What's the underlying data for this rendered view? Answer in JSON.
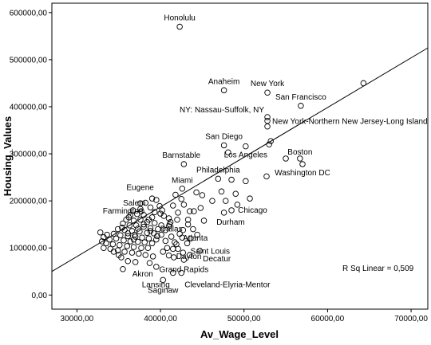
{
  "chart_data": {
    "type": "scatter",
    "xlabel": "Av_Wage_Level",
    "ylabel": "Housing_Values",
    "xlim": [
      27000,
      72000
    ],
    "ylim": [
      -30000,
      620000
    ],
    "xticks": [
      30000,
      40000,
      50000,
      60000,
      70000
    ],
    "xtick_labels": [
      "30000,00",
      "40000,00",
      "50000,00",
      "60000,00",
      "70000,00"
    ],
    "yticks": [
      0,
      100000,
      200000,
      300000,
      400000,
      500000,
      600000
    ],
    "ytick_labels": [
      "0,00",
      "100000,00",
      "200000,00",
      "300000,00",
      "400000,00",
      "500000,00",
      "600000,00"
    ],
    "fit_line": {
      "x": [
        27000,
        72000
      ],
      "y": [
        50000,
        525000
      ]
    },
    "rsq_label": "R Sq Linear = 0,509",
    "labeled_points": [
      {
        "name": "Honolulu",
        "x": 42300,
        "y": 570000,
        "label_pos": "above"
      },
      {
        "name": "Anaheim",
        "x": 47600,
        "y": 435000,
        "label_pos": "above"
      },
      {
        "name": "New York",
        "x": 52800,
        "y": 430000,
        "label_pos": "above"
      },
      {
        "name": "San Francisco",
        "x": 56800,
        "y": 402000,
        "label_pos": "above"
      },
      {
        "name": "NY: Nassau-Suffolk, NY",
        "x": 52800,
        "y": 378000,
        "label_pos": "above-left"
      },
      {
        "name": "New York-Northern New Jersey-Long Island",
        "x": 52800,
        "y": 370000,
        "label_pos": "right"
      },
      {
        "name": "San Diego",
        "x": 47600,
        "y": 318000,
        "label_pos": "above"
      },
      {
        "name": "Boston",
        "x": 56700,
        "y": 285000,
        "label_pos": "above"
      },
      {
        "name": "Los Angeles",
        "x": 50200,
        "y": 316000,
        "label_pos": "below"
      },
      {
        "name": "Barnstable",
        "x": 42500,
        "y": 278000,
        "label_pos": "above"
      },
      {
        "name": "Washington DC",
        "x": 57000,
        "y": 278000,
        "label_pos": "below"
      },
      {
        "name": "Philadelphia",
        "x": 46900,
        "y": 247000,
        "label_pos": "above"
      },
      {
        "name": "Miami",
        "x": 42600,
        "y": 225000,
        "label_pos": "above"
      },
      {
        "name": "Eugene",
        "x": 39600,
        "y": 213000,
        "label_pos": "above-left"
      },
      {
        "name": "Salem",
        "x": 38800,
        "y": 197000,
        "label_pos": "left"
      },
      {
        "name": "Farmington",
        "x": 38500,
        "y": 180000,
        "label_pos": "left"
      },
      {
        "name": "Chicago",
        "x": 48700,
        "y": 182000,
        "label_pos": "right"
      },
      {
        "name": "Durham",
        "x": 48400,
        "y": 173000,
        "label_pos": "below"
      },
      {
        "name": "Dallas",
        "x": 39400,
        "y": 142000,
        "label_pos": "right"
      },
      {
        "name": "Atlanta",
        "x": 42300,
        "y": 136000,
        "label_pos": "below-right"
      },
      {
        "name": "Saint Louis",
        "x": 43200,
        "y": 108000,
        "label_pos": "below-right"
      },
      {
        "name": "Dayton",
        "x": 41500,
        "y": 97000,
        "label_pos": "below-right"
      },
      {
        "name": "Decatur",
        "x": 44700,
        "y": 92000,
        "label_pos": "below-right"
      },
      {
        "name": "Akron",
        "x": 39500,
        "y": 60000,
        "label_pos": "below-left"
      },
      {
        "name": "Grand Rapids",
        "x": 42800,
        "y": 72000,
        "label_pos": "below"
      },
      {
        "name": "Lansing",
        "x": 41500,
        "y": 37000,
        "label_pos": "below-left"
      },
      {
        "name": "Cleveland-Elyria-Mentor",
        "x": 42500,
        "y": 37000,
        "label_pos": "below-right"
      },
      {
        "name": "Saginaw",
        "x": 40300,
        "y": 28000,
        "label_pos": "below"
      }
    ],
    "points": [
      [
        42300,
        570000
      ],
      [
        64300,
        450000
      ],
      [
        47600,
        435000
      ],
      [
        52800,
        430000
      ],
      [
        56800,
        402000
      ],
      [
        52800,
        378000
      ],
      [
        52800,
        370000
      ],
      [
        52800,
        358000
      ],
      [
        53200,
        327000
      ],
      [
        53000,
        320000
      ],
      [
        47600,
        318000
      ],
      [
        50200,
        316000
      ],
      [
        56700,
        290000
      ],
      [
        55000,
        290000
      ],
      [
        57000,
        278000
      ],
      [
        42800,
        278000
      ],
      [
        48100,
        303000
      ],
      [
        52700,
        252000
      ],
      [
        46900,
        247000
      ],
      [
        48500,
        245000
      ],
      [
        50200,
        242000
      ],
      [
        42600,
        226000
      ],
      [
        44300,
        218000
      ],
      [
        47300,
        220000
      ],
      [
        41800,
        213000
      ],
      [
        45000,
        212000
      ],
      [
        49000,
        215000
      ],
      [
        42500,
        204000
      ],
      [
        46200,
        200000
      ],
      [
        50700,
        205000
      ],
      [
        47800,
        200000
      ],
      [
        49200,
        192000
      ],
      [
        48500,
        180000
      ],
      [
        44000,
        178000
      ],
      [
        47600,
        175000
      ],
      [
        42800,
        192000
      ],
      [
        41500,
        190000
      ],
      [
        42100,
        175000
      ],
      [
        43500,
        178000
      ],
      [
        44800,
        185000
      ],
      [
        42000,
        160000
      ],
      [
        43300,
        150000
      ],
      [
        41200,
        155000
      ],
      [
        42700,
        138000
      ],
      [
        43900,
        140000
      ],
      [
        42300,
        130000
      ],
      [
        43200,
        110000
      ],
      [
        41700,
        112000
      ],
      [
        44700,
        94000
      ],
      [
        41500,
        98000
      ],
      [
        39500,
        60000
      ],
      [
        42800,
        75000
      ],
      [
        41500,
        47000
      ],
      [
        42500,
        47000
      ],
      [
        40300,
        32000
      ],
      [
        39000,
        205000
      ],
      [
        38200,
        196000
      ],
      [
        37600,
        195000
      ],
      [
        39500,
        202000
      ],
      [
        38800,
        186000
      ],
      [
        37600,
        183000
      ],
      [
        39300,
        176000
      ],
      [
        40200,
        180000
      ],
      [
        36700,
        180000
      ],
      [
        37200,
        172000
      ],
      [
        38000,
        170000
      ],
      [
        39000,
        165000
      ],
      [
        40400,
        168000
      ],
      [
        41000,
        163000
      ],
      [
        36200,
        165000
      ],
      [
        35900,
        160000
      ],
      [
        36800,
        158000
      ],
      [
        37600,
        160000
      ],
      [
        38400,
        155000
      ],
      [
        39300,
        153000
      ],
      [
        40100,
        148000
      ],
      [
        41100,
        150000
      ],
      [
        35500,
        152000
      ],
      [
        36300,
        148000
      ],
      [
        37100,
        148000
      ],
      [
        38000,
        145000
      ],
      [
        38800,
        142000
      ],
      [
        39700,
        140000
      ],
      [
        40600,
        138000
      ],
      [
        34900,
        140000
      ],
      [
        35700,
        138000
      ],
      [
        36600,
        136000
      ],
      [
        37500,
        135000
      ],
      [
        38400,
        132000
      ],
      [
        39200,
        131000
      ],
      [
        40100,
        128000
      ],
      [
        34400,
        130000
      ],
      [
        35200,
        127000
      ],
      [
        36100,
        125000
      ],
      [
        37000,
        124000
      ],
      [
        37800,
        122000
      ],
      [
        38600,
        120000
      ],
      [
        39500,
        118000
      ],
      [
        34700,
        120000
      ],
      [
        33900,
        118000
      ],
      [
        35600,
        116000
      ],
      [
        36400,
        114000
      ],
      [
        37300,
        113000
      ],
      [
        38100,
        112000
      ],
      [
        39000,
        110000
      ],
      [
        33500,
        110000
      ],
      [
        34300,
        108000
      ],
      [
        35100,
        106000
      ],
      [
        36000,
        104000
      ],
      [
        36800,
        102000
      ],
      [
        37700,
        100000
      ],
      [
        38500,
        100000
      ],
      [
        33200,
        100000
      ],
      [
        34000,
        98000
      ],
      [
        34900,
        95000
      ],
      [
        35700,
        92000
      ],
      [
        36600,
        90000
      ],
      [
        37400,
        88000
      ],
      [
        38200,
        85000
      ],
      [
        39100,
        82000
      ],
      [
        35300,
        80000
      ],
      [
        36100,
        72000
      ],
      [
        37000,
        70000
      ],
      [
        38700,
        68000
      ],
      [
        35500,
        55000
      ],
      [
        32800,
        133000
      ],
      [
        33600,
        128000
      ],
      [
        33200,
        123000
      ],
      [
        33000,
        114000
      ],
      [
        34400,
        92000
      ],
      [
        40600,
        115000
      ],
      [
        41300,
        124000
      ],
      [
        40800,
        100000
      ],
      [
        41900,
        108000
      ],
      [
        40300,
        92000
      ],
      [
        41000,
        84000
      ],
      [
        41600,
        80000
      ],
      [
        42100,
        98000
      ],
      [
        42700,
        90000
      ],
      [
        43500,
        85000
      ],
      [
        41000,
        146000
      ],
      [
        42600,
        122000
      ],
      [
        43600,
        120000
      ],
      [
        44400,
        128000
      ],
      [
        43300,
        160000
      ],
      [
        45200,
        158000
      ],
      [
        38000,
        150000
      ],
      [
        37300,
        141000
      ],
      [
        38800,
        136000
      ],
      [
        39600,
        125000
      ],
      [
        36100,
        131000
      ],
      [
        36900,
        128000
      ],
      [
        35400,
        143000
      ],
      [
        36800,
        118000
      ],
      [
        35000,
        85000
      ],
      [
        40000,
        173000
      ],
      [
        38600,
        160000
      ],
      [
        37700,
        178000
      ],
      [
        36400,
        170000
      ],
      [
        39900,
        189000
      ]
    ]
  }
}
